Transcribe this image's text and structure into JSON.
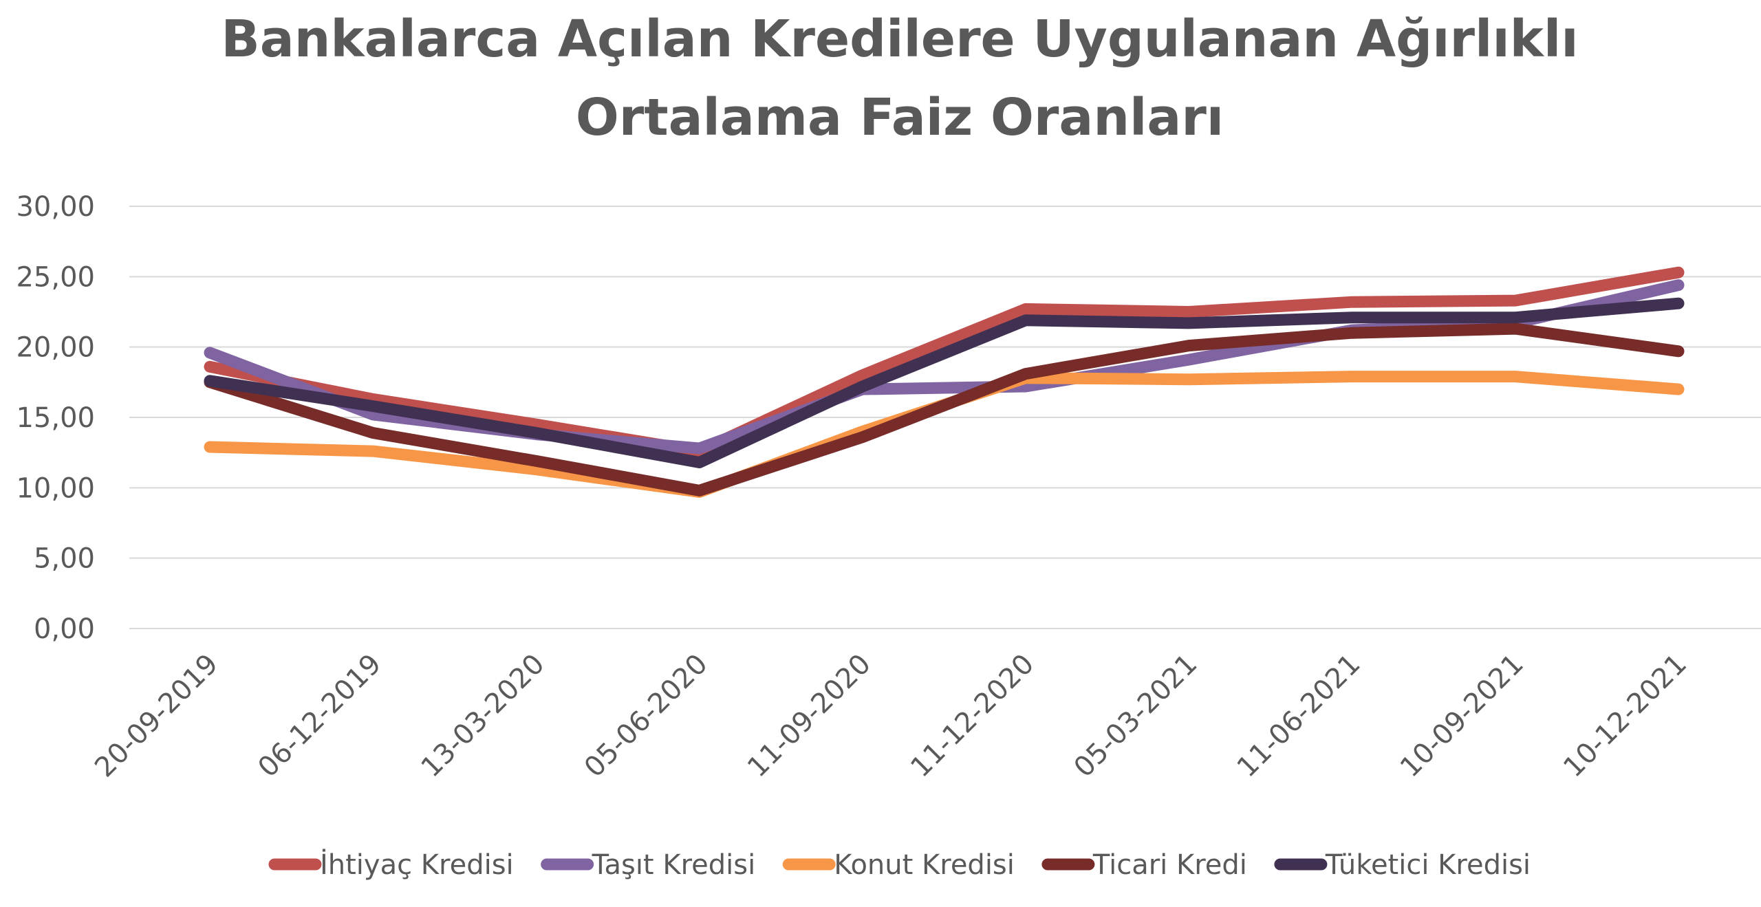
{
  "chart_data": {
    "type": "line",
    "title_lines": [
      "Bankalarca Açılan Kredilere Uygulanan Ağırlıklı",
      "Ortalama Faiz Oranları"
    ],
    "xlabel": "",
    "ylabel": "",
    "categories": [
      "20-09-2019",
      "06-12-2019",
      "13-03-2020",
      "05-06-2020",
      "11-09-2020",
      "11-12-2020",
      "05-03-2021",
      "11-06-2021",
      "10-09-2021",
      "10-12-2021"
    ],
    "ylim": [
      0,
      30
    ],
    "y_ticks": [
      0,
      5,
      10,
      15,
      20,
      25,
      30
    ],
    "y_tick_labels": [
      "0,00",
      "5,00",
      "10,00",
      "15,00",
      "20,00",
      "25,00",
      "30,00"
    ],
    "grid": true,
    "legend_position": "bottom",
    "series": [
      {
        "name": "İhtiyaç Kredisi",
        "color": "#c0504d",
        "values": [
          18.6,
          16.3,
          14.5,
          12.6,
          18.0,
          22.7,
          22.5,
          23.2,
          23.3,
          25.3
        ]
      },
      {
        "name": "Taşıt Kredisi",
        "color": "#8064a2",
        "values": [
          19.6,
          15.2,
          13.8,
          12.8,
          17.0,
          17.2,
          19.1,
          21.2,
          21.7,
          24.4
        ]
      },
      {
        "name": "Konut Kredisi",
        "color": "#f79646",
        "values": [
          12.9,
          12.6,
          11.3,
          9.7,
          14.0,
          17.8,
          17.7,
          17.9,
          17.9,
          17.0
        ]
      },
      {
        "name": "Ticari Kredi",
        "color": "#772c2a",
        "values": [
          17.5,
          13.9,
          11.9,
          9.8,
          13.6,
          18.1,
          20.1,
          21.0,
          21.3,
          19.7
        ]
      },
      {
        "name": "Tüketici Kredisi",
        "color": "#403152",
        "values": [
          17.6,
          15.8,
          13.9,
          11.8,
          17.2,
          21.9,
          21.7,
          22.1,
          22.1,
          23.1
        ]
      }
    ]
  }
}
